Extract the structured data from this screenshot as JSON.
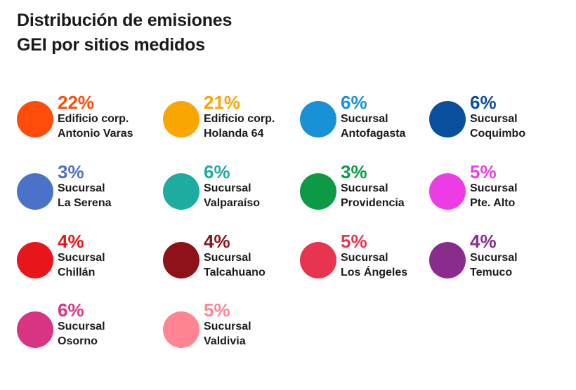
{
  "chart_data": {
    "type": "table",
    "title": "Distribución de emisiones GEI por sitios medidos",
    "title_lines": [
      "Distribución de emisiones",
      "GEI por sitios medidos"
    ],
    "items": [
      {
        "pct": "22%",
        "value": 22,
        "line1": "Edificio corp.",
        "line2": "Antonio Varas",
        "color": "#FF4C0A"
      },
      {
        "pct": "21%",
        "value": 21,
        "line1": "Edificio corp.",
        "line2": "Holanda 64",
        "color": "#F9A600"
      },
      {
        "pct": "6%",
        "value": 6,
        "line1": "Sucursal",
        "line2": "Antofagasta",
        "color": "#1891D6"
      },
      {
        "pct": "6%",
        "value": 6,
        "line1": "Sucursal",
        "line2": "Coquimbo",
        "color": "#0A4F9E"
      },
      {
        "pct": "3%",
        "value": 3,
        "line1": "Sucursal",
        "line2": "La Serena",
        "color": "#4A72C9"
      },
      {
        "pct": "6%",
        "value": 6,
        "line1": "Sucursal",
        "line2": "Valparaíso",
        "color": "#1EABA0"
      },
      {
        "pct": "3%",
        "value": 3,
        "line1": "Sucursal",
        "line2": "Providencia",
        "color": "#0E9A45"
      },
      {
        "pct": "5%",
        "value": 5,
        "line1": "Sucursal",
        "line2": "Pte. Alto",
        "color": "#EE3CE4"
      },
      {
        "pct": "4%",
        "value": 4,
        "line1": "Sucursal",
        "line2": "Chillán",
        "color": "#E8161B"
      },
      {
        "pct": "4%",
        "value": 4,
        "line1": "Sucursal",
        "line2": "Talcahuano",
        "color": "#8E1218"
      },
      {
        "pct": "5%",
        "value": 5,
        "line1": "Sucursal",
        "line2": "Los Ángeles",
        "color": "#E7354F"
      },
      {
        "pct": "4%",
        "value": 4,
        "line1": "Sucursal",
        "line2": "Temuco",
        "color": "#8A2C8E"
      },
      {
        "pct": "6%",
        "value": 6,
        "line1": "Sucursal",
        "line2": "Osorno",
        "color": "#D93383"
      },
      {
        "pct": "5%",
        "value": 5,
        "line1": "Sucursal",
        "line2": "Valdivia",
        "color": "#FF8593"
      }
    ]
  }
}
